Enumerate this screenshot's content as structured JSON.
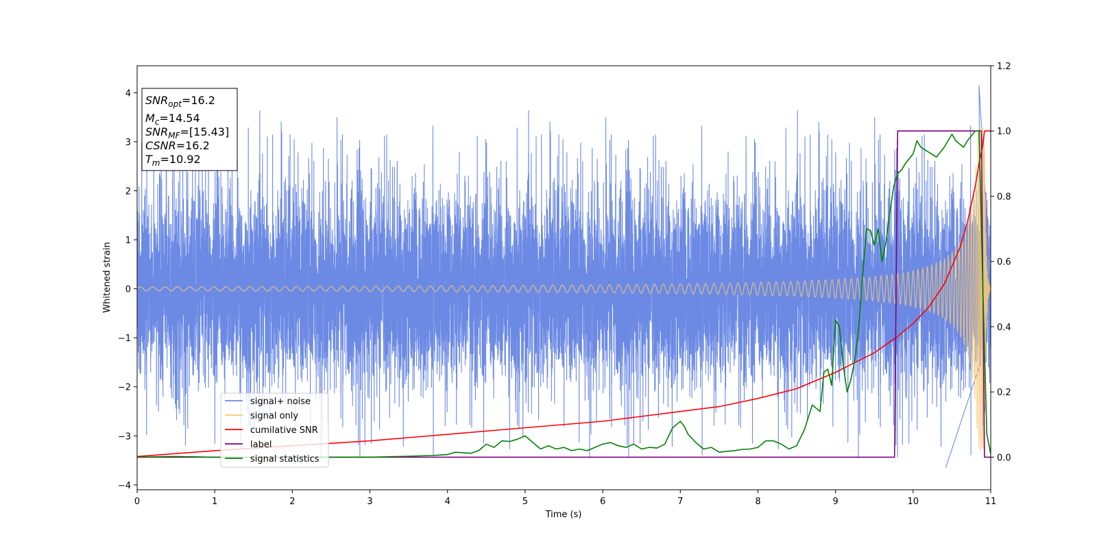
{
  "chart_data": {
    "type": "line",
    "xlabel": "Time (s)",
    "ylabel": "Whitened strain",
    "xlim": [
      0,
      11
    ],
    "ylim": [
      -4.1,
      4.55
    ],
    "y2lim": [
      -0.1,
      1.2
    ],
    "x_ticks": [
      "0",
      "1",
      "2",
      "3",
      "4",
      "5",
      "6",
      "7",
      "8",
      "9",
      "10",
      "11"
    ],
    "y_ticks": [
      "−4",
      "−3",
      "−2",
      "−1",
      "0",
      "1",
      "2",
      "3",
      "4"
    ],
    "y2_ticks": [
      "0.0",
      "0.2",
      "0.4",
      "0.6",
      "0.8",
      "1.0",
      "1.2"
    ],
    "legend_position": "lower-left",
    "legend": [
      {
        "label": "signal+ noise",
        "color": "#6c8ae4"
      },
      {
        "label": "signal only",
        "color": "#f5c875"
      },
      {
        "label": "cumilative SNR",
        "color": "#ff0000"
      },
      {
        "label": "label",
        "color": "#800080"
      },
      {
        "label": "signal statistics",
        "color": "#008000"
      }
    ],
    "info_box": {
      "snr_opt": {
        "base": "SNR",
        "sub": "opt",
        "value": "=16.2"
      },
      "mc": {
        "base": "M",
        "sub": "c",
        "value": "=14.54"
      },
      "snr_mf": {
        "base": "SNR",
        "sub": "MF",
        "value": "=[15.43]"
      },
      "csnr": {
        "base": "CSNR",
        "value": "=16.2"
      },
      "tm": {
        "base": "T",
        "sub": "m",
        "value": "=10.92"
      }
    },
    "series": [
      {
        "name": "signal+ noise",
        "axis": "left",
        "color": "#6c8ae4",
        "kind": "noise",
        "noise_sigma": 1.0,
        "noise_range": [
          -3.7,
          4.2
        ],
        "duration": 11
      },
      {
        "name": "signal only",
        "axis": "left",
        "color": "#f5c875",
        "kind": "chirp",
        "merger_time": 10.92,
        "peak_amplitude": 3.3
      },
      {
        "name": "cumilative SNR",
        "axis": "right",
        "color": "#ff0000",
        "x": [
          0,
          1,
          2,
          3,
          4,
          5,
          6,
          7,
          7.5,
          8,
          8.5,
          9,
          9.5,
          9.8,
          10,
          10.2,
          10.4,
          10.6,
          10.7,
          10.8,
          10.85,
          10.9,
          10.92,
          11
        ],
        "y": [
          0.002,
          0.02,
          0.035,
          0.05,
          0.07,
          0.09,
          0.11,
          0.14,
          0.155,
          0.18,
          0.21,
          0.26,
          0.32,
          0.37,
          0.41,
          0.46,
          0.53,
          0.64,
          0.72,
          0.83,
          0.9,
          0.96,
          1.0,
          1.0
        ]
      },
      {
        "name": "label",
        "axis": "right",
        "color": "#800080",
        "x": [
          0,
          9.76,
          9.8,
          10.88,
          10.92,
          11
        ],
        "y": [
          0.0,
          0.0,
          1.0,
          1.0,
          0.0,
          0.0
        ]
      },
      {
        "name": "signal statistics",
        "axis": "right",
        "color": "#008000",
        "x": [
          0,
          0.5,
          1,
          2,
          3,
          3.5,
          3.8,
          4.0,
          4.1,
          4.3,
          4.4,
          4.5,
          4.6,
          4.7,
          4.8,
          4.9,
          5.0,
          5.1,
          5.2,
          5.3,
          5.4,
          5.5,
          5.6,
          5.7,
          5.8,
          5.9,
          6.0,
          6.1,
          6.2,
          6.3,
          6.4,
          6.5,
          6.6,
          6.7,
          6.8,
          6.9,
          7.0,
          7.05,
          7.1,
          7.2,
          7.3,
          7.4,
          7.5,
          7.6,
          7.7,
          7.8,
          7.9,
          8.0,
          8.1,
          8.2,
          8.3,
          8.4,
          8.5,
          8.6,
          8.7,
          8.8,
          8.85,
          8.9,
          8.95,
          9.0,
          9.05,
          9.1,
          9.15,
          9.2,
          9.25,
          9.3,
          9.35,
          9.4,
          9.45,
          9.5,
          9.55,
          9.6,
          9.65,
          9.7,
          9.75,
          9.8,
          9.85,
          9.9,
          10.0,
          10.05,
          10.1,
          10.2,
          10.3,
          10.4,
          10.5,
          10.55,
          10.6,
          10.65,
          10.7,
          10.75,
          10.8,
          10.85,
          10.9,
          10.95,
          11.0
        ],
        "y": [
          0.0,
          0.002,
          0.0,
          0.0,
          0.0,
          0.003,
          0.005,
          0.008,
          0.015,
          0.012,
          0.02,
          0.04,
          0.03,
          0.05,
          0.048,
          0.055,
          0.065,
          0.045,
          0.025,
          0.035,
          0.025,
          0.03,
          0.02,
          0.025,
          0.02,
          0.03,
          0.04,
          0.045,
          0.035,
          0.03,
          0.04,
          0.025,
          0.03,
          0.028,
          0.04,
          0.09,
          0.11,
          0.095,
          0.07,
          0.045,
          0.025,
          0.03,
          0.015,
          0.018,
          0.02,
          0.024,
          0.025,
          0.03,
          0.05,
          0.05,
          0.04,
          0.025,
          0.035,
          0.085,
          0.16,
          0.14,
          0.26,
          0.27,
          0.22,
          0.42,
          0.4,
          0.28,
          0.2,
          0.24,
          0.3,
          0.4,
          0.56,
          0.7,
          0.695,
          0.65,
          0.7,
          0.6,
          0.66,
          0.75,
          0.83,
          0.87,
          0.88,
          0.9,
          0.93,
          0.97,
          0.95,
          0.935,
          0.92,
          0.95,
          0.99,
          0.97,
          0.96,
          0.95,
          0.97,
          0.985,
          1.0,
          1.0,
          0.5,
          0.07,
          0.01
        ]
      }
    ]
  }
}
